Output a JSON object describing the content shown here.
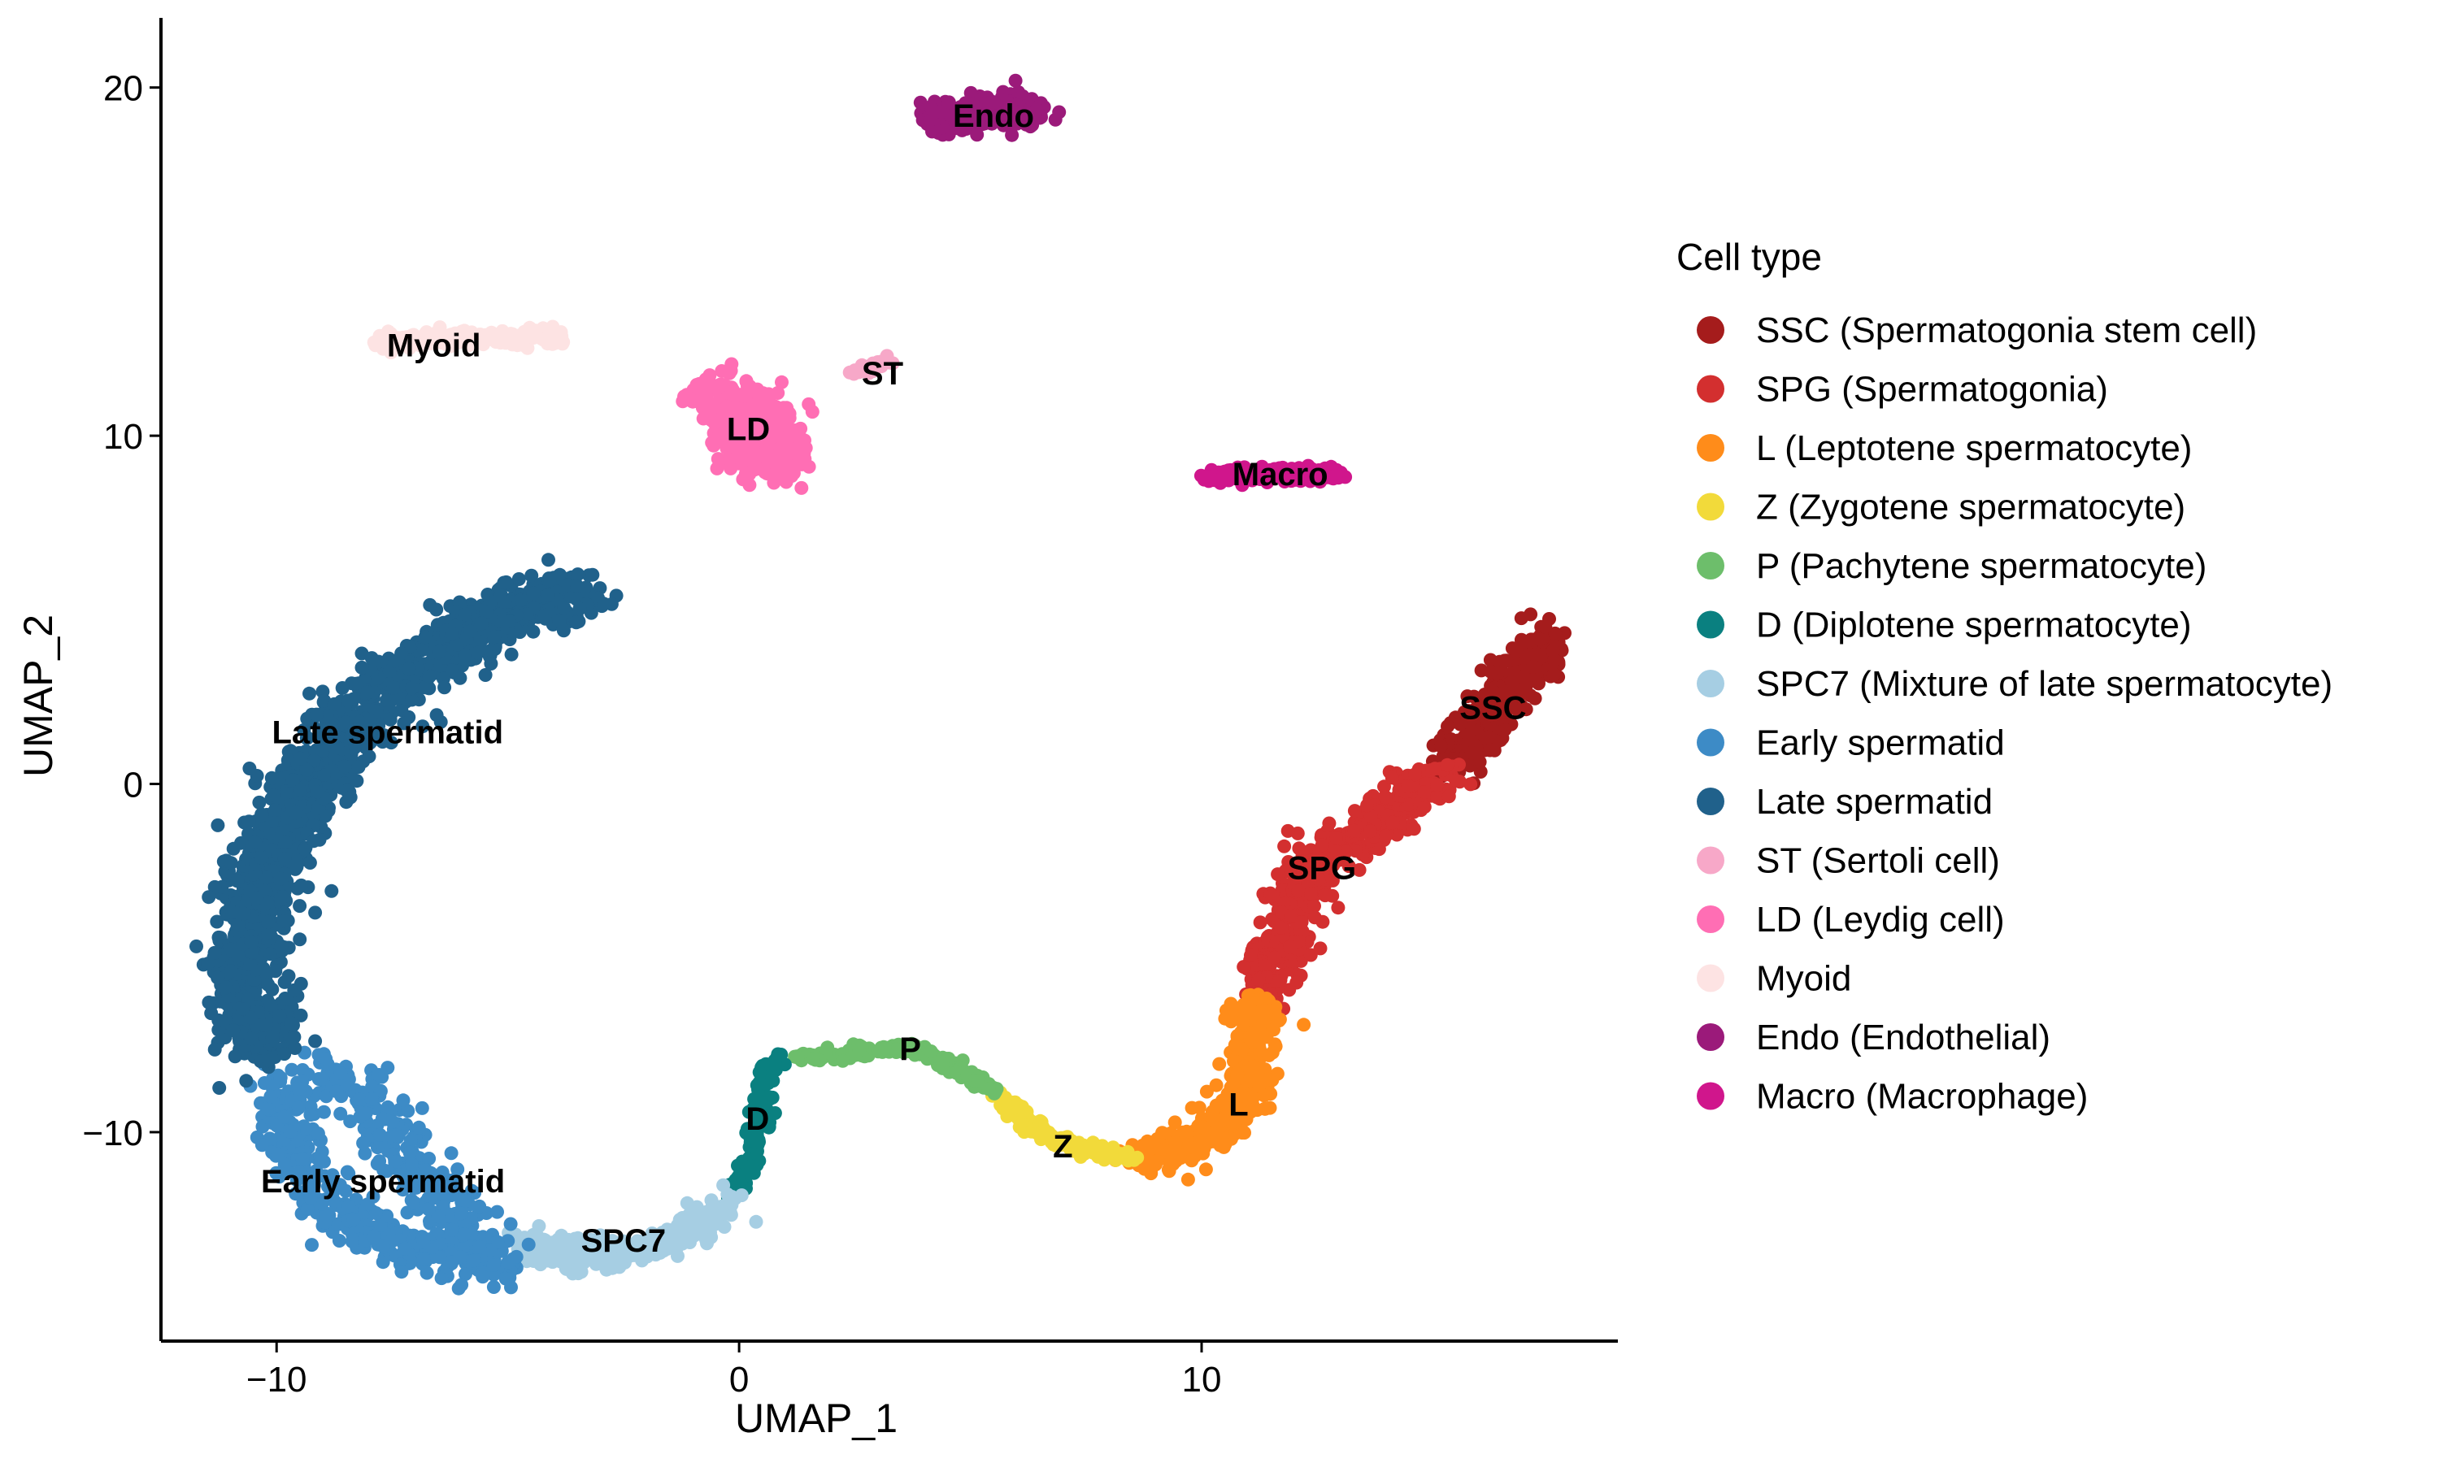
{
  "chart_data": {
    "type": "scatter",
    "xlabel": "UMAP_1",
    "ylabel": "UMAP_2",
    "xlim": [
      -12.5,
      19
    ],
    "ylim": [
      -16,
      22
    ],
    "xticks": [
      -10,
      0,
      10
    ],
    "yticks": [
      -10,
      0,
      10,
      20
    ],
    "tick_labels_x": [
      "−10",
      "0",
      "10"
    ],
    "tick_labels_y": [
      "−10",
      "0",
      "10",
      "20"
    ],
    "grid": false,
    "legend_title": "Cell type",
    "legend_position": "right",
    "series": [
      {
        "key": "SSC",
        "name": "SSC (Spermatogonia stem cell)",
        "color": "#A51C1C",
        "label": "SSC",
        "label_pos": [
          16.3,
          2.2
        ],
        "path": [
          [
            15.4,
            0.6
          ],
          [
            16.2,
            1.8
          ],
          [
            16.8,
            3.0
          ],
          [
            17.5,
            4.2
          ]
        ],
        "spread": 0.55,
        "n": 420
      },
      {
        "key": "SPG",
        "name": "SPG (Spermatogonia)",
        "color": "#D32F2F",
        "label": "SPG",
        "label_pos": [
          12.6,
          -2.4
        ],
        "path": [
          [
            11.4,
            -6.0
          ],
          [
            11.8,
            -4.2
          ],
          [
            12.5,
            -2.0
          ],
          [
            13.4,
            -1.6
          ],
          [
            14.3,
            -0.6
          ],
          [
            15.2,
            0.4
          ]
        ],
        "spread": 0.55,
        "n": 520
      },
      {
        "key": "L",
        "name": "L (Leptotene spermatocyte)",
        "color": "#FF8C1A",
        "label": "L",
        "label_pos": [
          10.8,
          -9.2
        ],
        "path": [
          [
            8.6,
            -10.8
          ],
          [
            10.0,
            -10.3
          ],
          [
            10.9,
            -9.0
          ],
          [
            11.1,
            -7.5
          ],
          [
            11.3,
            -6.2
          ]
        ],
        "spread": 0.5,
        "n": 420
      },
      {
        "key": "Z",
        "name": "Z (Zygotene spermatocyte)",
        "color": "#F2DA3A",
        "label": "Z",
        "label_pos": [
          7.0,
          -10.4
        ],
        "path": [
          [
            5.6,
            -8.9
          ],
          [
            6.4,
            -9.9
          ],
          [
            7.4,
            -10.5
          ],
          [
            8.5,
            -10.7
          ]
        ],
        "spread": 0.18,
        "n": 180
      },
      {
        "key": "P",
        "name": "P (Pachytene spermatocyte)",
        "color": "#6DBE6B",
        "label": "P",
        "label_pos": [
          3.7,
          -7.6
        ],
        "path": [
          [
            1.2,
            -7.9
          ],
          [
            2.5,
            -7.7
          ],
          [
            3.8,
            -7.6
          ],
          [
            4.8,
            -8.2
          ],
          [
            5.6,
            -8.9
          ]
        ],
        "spread": 0.15,
        "n": 160
      },
      {
        "key": "D",
        "name": "D (Diplotene spermatocyte)",
        "color": "#0A8080",
        "label": "D",
        "label_pos": [
          0.4,
          -9.6
        ],
        "path": [
          [
            -0.1,
            -11.8
          ],
          [
            0.3,
            -10.7
          ],
          [
            0.5,
            -9.4
          ],
          [
            0.5,
            -8.4
          ],
          [
            0.8,
            -7.9
          ]
        ],
        "spread": 0.18,
        "n": 150
      },
      {
        "key": "SPC7",
        "name": "SPC7 (Mixture of late spermatocyte)",
        "color": "#A6CEE3",
        "label": "SPC7",
        "label_pos": [
          -2.5,
          -13.1
        ],
        "path": [
          [
            -4.6,
            -13.2
          ],
          [
            -3.5,
            -13.6
          ],
          [
            -2.2,
            -13.4
          ],
          [
            -1.0,
            -12.8
          ],
          [
            -0.2,
            -12.0
          ]
        ],
        "spread": 0.4,
        "n": 320
      },
      {
        "key": "EarlySpermatid",
        "name": "Early spermatid",
        "color": "#3D8BC6",
        "label": "Early spermatid",
        "label_pos": [
          -7.7,
          -11.4
        ],
        "path": [
          [
            -10.0,
            -8.5
          ],
          [
            -9.5,
            -10.8
          ],
          [
            -8.4,
            -12.6
          ],
          [
            -6.8,
            -13.6
          ],
          [
            -5.2,
            -13.8
          ],
          [
            -8.9,
            -8.0
          ]
        ],
        "spread": 0.65,
        "n": 620
      },
      {
        "key": "LateSpermatid",
        "name": "Late spermatid",
        "color": "#20618B",
        "label": "Late spermatid",
        "label_pos": [
          -7.6,
          1.5
        ],
        "path": [
          [
            -10.3,
            -7.6
          ],
          [
            -10.7,
            -5.5
          ],
          [
            -10.4,
            -3.0
          ],
          [
            -9.6,
            -0.5
          ],
          [
            -8.4,
            1.8
          ],
          [
            -6.6,
            3.8
          ],
          [
            -4.8,
            5.0
          ],
          [
            -3.4,
            5.5
          ]
        ],
        "spread": 0.75,
        "n": 1500
      },
      {
        "key": "ST",
        "name": "ST (Sertoli cell)",
        "color": "#F7A8C8",
        "label": "ST",
        "label_pos": [
          3.1,
          11.8
        ],
        "path": [
          [
            2.5,
            11.8
          ],
          [
            3.3,
            12.2
          ]
        ],
        "spread": 0.12,
        "n": 30
      },
      {
        "key": "LD",
        "name": "LD (Leydig cell)",
        "color": "#FF6EB4",
        "label": "LD",
        "label_pos": [
          0.2,
          10.2
        ],
        "path": [
          [
            -0.4,
            11.2
          ],
          [
            0.2,
            10.6
          ],
          [
            0.6,
            9.8
          ],
          [
            0.8,
            9.2
          ]
        ],
        "spread": 0.75,
        "n": 520
      },
      {
        "key": "Myoid",
        "name": "Myoid",
        "color": "#FDE3E3",
        "label": "Myoid",
        "label_pos": [
          -6.6,
          12.6
        ],
        "path": [
          [
            -7.8,
            12.7
          ],
          [
            -6.5,
            12.8
          ],
          [
            -5.0,
            12.8
          ],
          [
            -3.9,
            12.8
          ]
        ],
        "spread": 0.22,
        "n": 200
      },
      {
        "key": "Endo",
        "name": "Endo (Endothelial)",
        "color": "#9B1A7A",
        "label": "Endo",
        "label_pos": [
          5.5,
          19.2
        ],
        "path": [
          [
            4.2,
            19.0
          ],
          [
            5.0,
            19.3
          ],
          [
            5.8,
            19.4
          ],
          [
            6.4,
            19.3
          ]
        ],
        "spread": 0.38,
        "n": 320
      },
      {
        "key": "Macro",
        "name": "Macro (Macrophage)",
        "color": "#D0168C",
        "label": "Macro",
        "label_pos": [
          11.7,
          8.9
        ],
        "path": [
          [
            10.1,
            8.8
          ],
          [
            11.2,
            8.9
          ],
          [
            12.3,
            8.9
          ],
          [
            13.0,
            8.9
          ]
        ],
        "spread": 0.18,
        "n": 240
      }
    ]
  }
}
